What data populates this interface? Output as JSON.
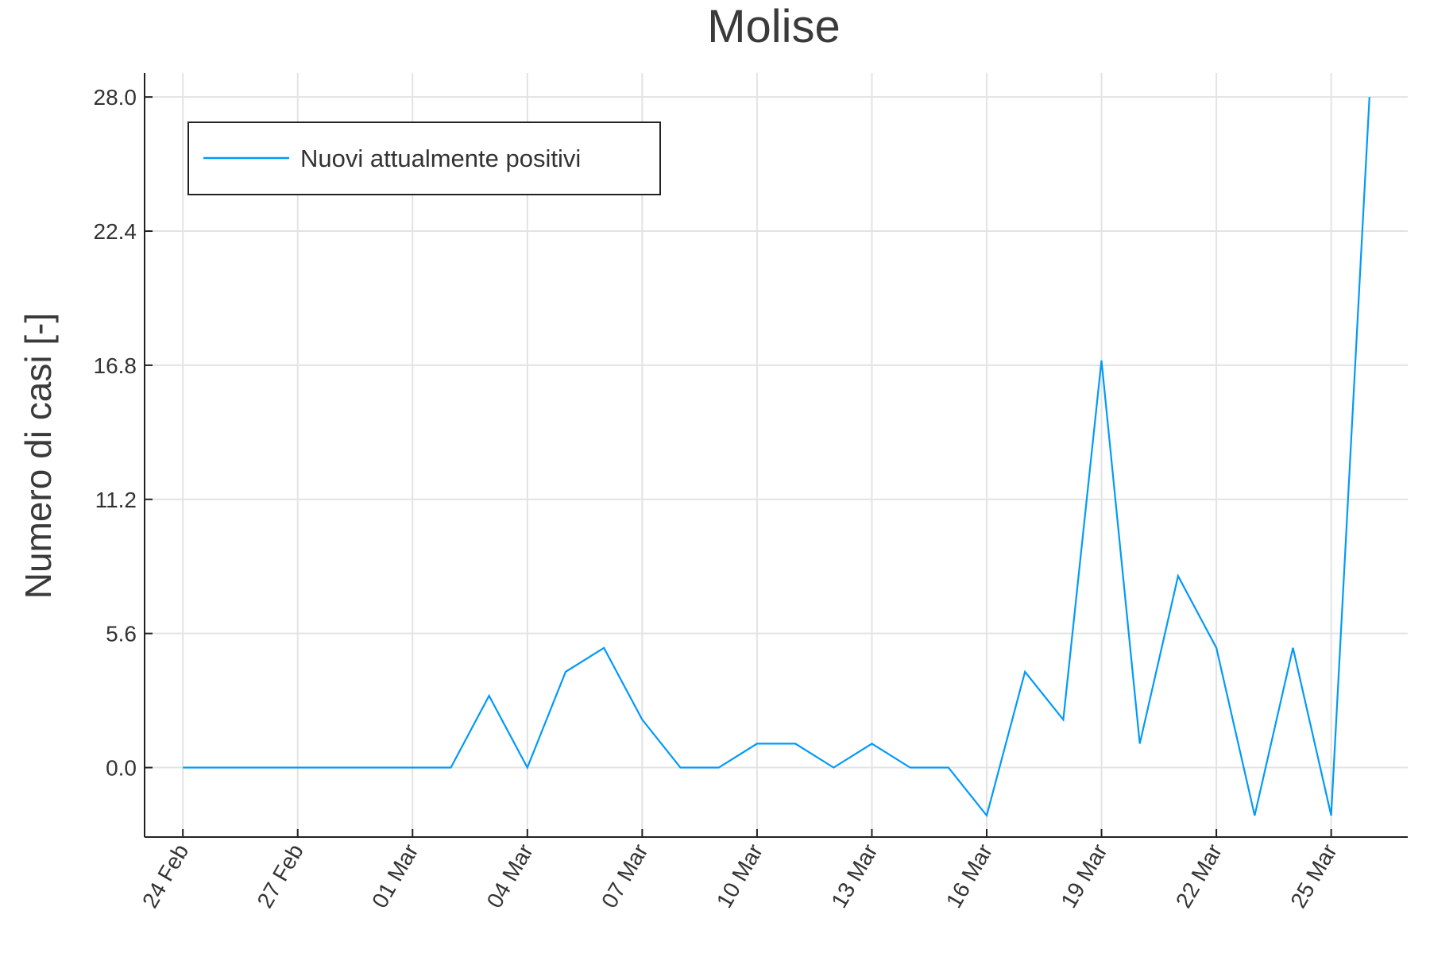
{
  "chart_data": {
    "type": "line",
    "title": "Molise",
    "xlabel": "",
    "ylabel": "Numero di casi [-]",
    "x_tick_labels": [
      "24 Feb",
      "27 Feb",
      "01 Mar",
      "04 Mar",
      "07 Mar",
      "10 Mar",
      "13 Mar",
      "16 Mar",
      "19 Mar",
      "22 Mar",
      "25 Mar"
    ],
    "y_tick_labels": [
      "0.0",
      "5.6",
      "11.2",
      "16.8",
      "22.4",
      "28.0"
    ],
    "y_ticks": [
      0,
      5.6,
      11.2,
      16.8,
      22.4,
      28.0
    ],
    "ylim": [
      -2.9,
      29
    ],
    "xlim": [
      "2020-02-23",
      "2020-03-27"
    ],
    "grid": true,
    "legend_position": "top-left",
    "x": [
      "2020-02-24",
      "2020-02-25",
      "2020-02-26",
      "2020-02-27",
      "2020-02-28",
      "2020-02-29",
      "2020-03-01",
      "2020-03-02",
      "2020-03-03",
      "2020-03-04",
      "2020-03-05",
      "2020-03-06",
      "2020-03-07",
      "2020-03-08",
      "2020-03-09",
      "2020-03-10",
      "2020-03-11",
      "2020-03-12",
      "2020-03-13",
      "2020-03-14",
      "2020-03-15",
      "2020-03-16",
      "2020-03-17",
      "2020-03-18",
      "2020-03-19",
      "2020-03-20",
      "2020-03-21",
      "2020-03-22",
      "2020-03-23",
      "2020-03-24",
      "2020-03-25",
      "2020-03-26"
    ],
    "series": [
      {
        "name": "Nuovi attualmente positivi",
        "color": "#009af9",
        "values": [
          0,
          0,
          0,
          0,
          0,
          0,
          0,
          0,
          3,
          0,
          4,
          5,
          2,
          0,
          0,
          1,
          1,
          0,
          1,
          0,
          0,
          -2,
          4,
          2,
          17,
          1,
          8,
          5,
          -2,
          5,
          -2,
          28
        ]
      }
    ]
  }
}
